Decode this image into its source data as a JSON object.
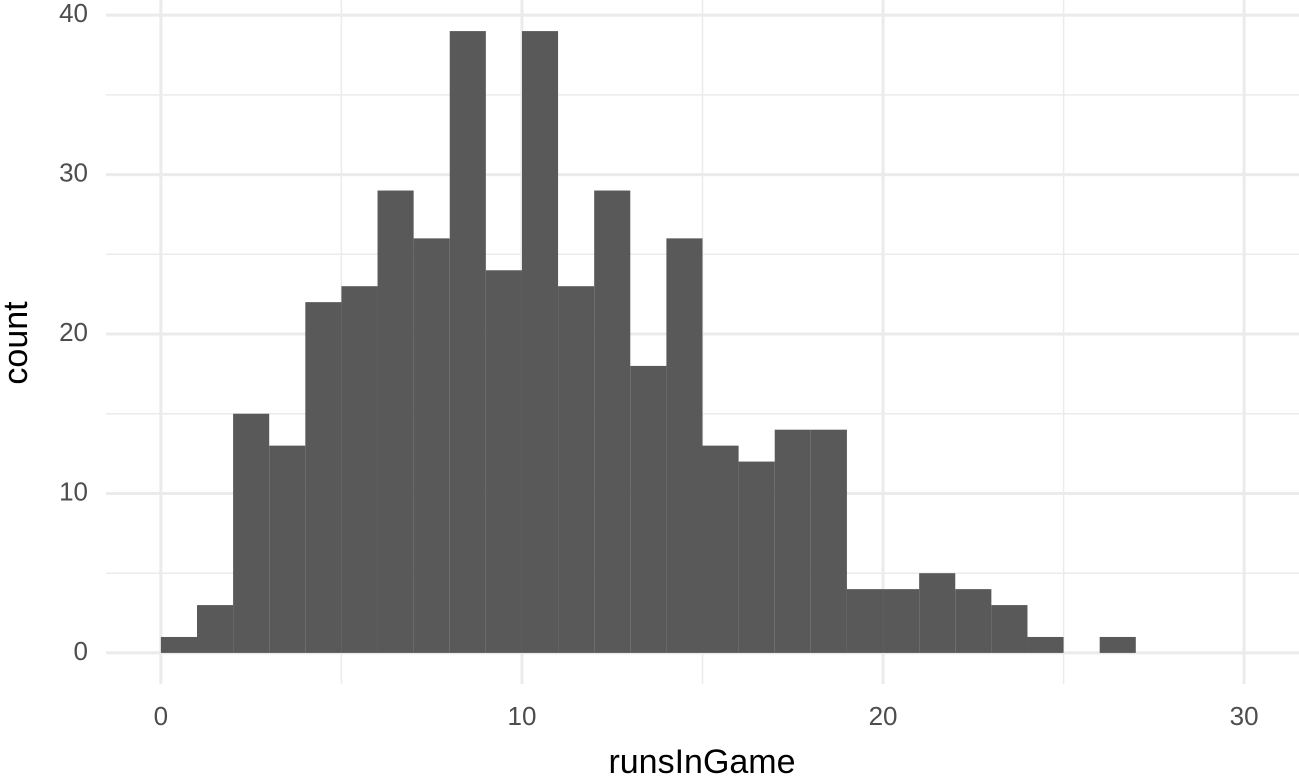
{
  "chart_data": {
    "type": "histogram",
    "x_label": "runsInGame",
    "y_label": "count",
    "bins": [
      0,
      1,
      2,
      3,
      4,
      5,
      6,
      7,
      8,
      9,
      10,
      11,
      12,
      13,
      14,
      15,
      16,
      17,
      18,
      19,
      20,
      21,
      22,
      23,
      24,
      25,
      26,
      27
    ],
    "values": [
      1,
      3,
      15,
      13,
      22,
      23,
      29,
      26,
      39,
      24,
      39,
      23,
      29,
      18,
      26,
      13,
      12,
      14,
      14,
      4,
      4,
      5,
      4,
      3,
      1,
      0,
      1
    ],
    "color": "#595959",
    "xlim": [
      -1.52,
      31.52
    ],
    "xticks": [
      0,
      10,
      20,
      30
    ],
    "minor_xticks": [
      5,
      15,
      25
    ],
    "ylim": [
      -1.95,
      40.95
    ],
    "yticks": [
      0,
      10,
      20,
      30,
      40
    ],
    "minor_yticks": [
      5,
      15,
      25,
      35
    ],
    "grid": true
  }
}
